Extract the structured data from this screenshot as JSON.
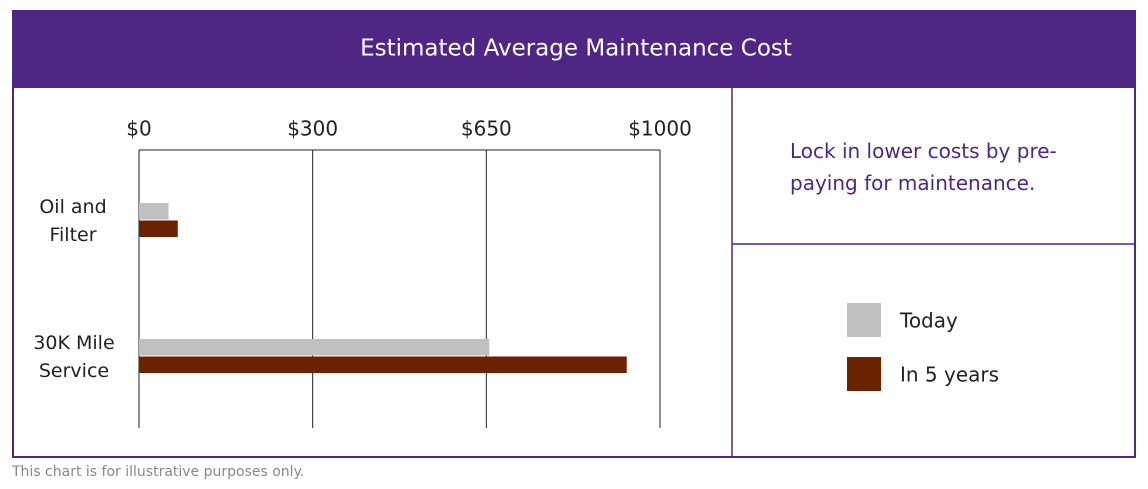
{
  "chart_data": {
    "type": "hbar",
    "title": "Estimated Average Maintenance Cost",
    "categories": [
      "Oil and Filter",
      "30K Mile Service"
    ],
    "series": [
      {
        "name": "Today",
        "color": "#c0c0c0",
        "values": [
          51,
          656
        ]
      },
      {
        "name": "In 5 years",
        "color": "#6b2200",
        "values": [
          67,
          933
        ]
      }
    ],
    "xlim": [
      0,
      1000
    ],
    "xticks": [
      {
        "value": 0,
        "label": "$0"
      },
      {
        "value": 300,
        "label": "$300"
      },
      {
        "value": 650,
        "label": "$650"
      },
      {
        "value": 1000,
        "label": "$1000"
      }
    ],
    "grid": true,
    "annotation": "Lock in lower costs by pre-paying for maintenance.",
    "footnote": "This chart is for illustrative purposes only."
  }
}
